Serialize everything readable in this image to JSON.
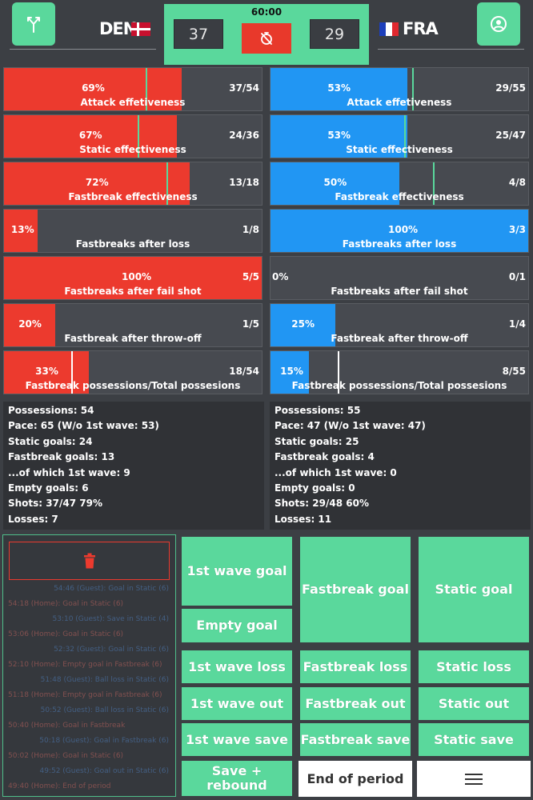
{
  "header": {
    "timer": "60:00",
    "left_team": {
      "name": "DEN",
      "score": "37"
    },
    "right_team": {
      "name": "FRA",
      "score": "29"
    }
  },
  "icons": {
    "top_left": "fork-icon",
    "top_right": "user-icon",
    "center": "stopwatch-off-icon",
    "delete": "trash-icon",
    "menu": "hamburger-menu-icon"
  },
  "colors": {
    "accent": "#5ad89c",
    "den_bar": "#ec3a2e",
    "fra_bar": "#2196f3",
    "background": "#3c3f44"
  },
  "den_stats": [
    {
      "label": "Attack effetiveness",
      "pct": "69%",
      "count": "37/54",
      "fill": 0.69,
      "avg": 0.55
    },
    {
      "label": "Static effectiveness",
      "pct": "67%",
      "count": "24/36",
      "fill": 0.67,
      "avg": 0.52
    },
    {
      "label": "Fastbreak effectiveness",
      "pct": "72%",
      "count": "13/18",
      "fill": 0.72,
      "avg": 0.63
    },
    {
      "label": "Fastbreaks after loss",
      "pct": "13%",
      "count": "1/8",
      "fill": 0.13
    },
    {
      "label": "Fastbreaks after fail shot",
      "pct": "100%",
      "count": "5/5",
      "fill": 1.0
    },
    {
      "label": "Fastbreak after throw-off",
      "pct": "20%",
      "count": "1/5",
      "fill": 0.2
    },
    {
      "label": "Fastbreak possessions/Total possesions",
      "pct": "33%",
      "count": "18/54",
      "fill": 0.33,
      "avg": 0.26,
      "avg_white": true
    }
  ],
  "fra_stats": [
    {
      "label": "Attack effetiveness",
      "pct": "53%",
      "count": "29/55",
      "fill": 0.53,
      "avg": 0.55
    },
    {
      "label": "Static effectiveness",
      "pct": "53%",
      "count": "25/47",
      "fill": 0.53,
      "avg": 0.52
    },
    {
      "label": "Fastbreak effectiveness",
      "pct": "50%",
      "count": "4/8",
      "fill": 0.5,
      "avg": 0.63
    },
    {
      "label": "Fastbreaks after loss",
      "pct": "100%",
      "count": "3/3",
      "fill": 1.0
    },
    {
      "label": "Fastbreaks after fail shot",
      "pct": "0%",
      "count": "0/1",
      "fill": 0.0
    },
    {
      "label": "Fastbreak after throw-off",
      "pct": "25%",
      "count": "1/4",
      "fill": 0.25
    },
    {
      "label": "Fastbreak possessions/Total possesions",
      "pct": "15%",
      "count": "8/55",
      "fill": 0.15,
      "avg": 0.26,
      "avg_white": true
    }
  ],
  "den_summary": [
    "Possessions: 54",
    "Pace: 65 (W/o 1st wave: 53)",
    "Static goals: 24",
    "Fastbreak goals: 13",
    "...of which 1st wave: 9",
    "Empty goals: 6",
    "Shots: 37/47 79%",
    "Losses: 7"
  ],
  "fra_summary": [
    "Possessions: 55",
    "Pace: 47 (W/o 1st wave: 47)",
    "Static goals: 25",
    "Fastbreak goals: 4",
    "...of which 1st wave: 0",
    "Empty goals: 0",
    "Shots: 29/48 60%",
    "Losses: 11"
  ],
  "log": [
    {
      "text": "54:46 (Guest): Goal in Static (6)",
      "team": "fra"
    },
    {
      "text": "54:18 (Home): Goal in Static (6)",
      "team": "den"
    },
    {
      "text": "53:10 (Guest): Save in Static (4)",
      "team": "fra"
    },
    {
      "text": "53:06 (Home): Goal in Static (6)",
      "team": "den"
    },
    {
      "text": "52:32 (Guest): Goal in Static (6)",
      "team": "fra"
    },
    {
      "text": "52:10 (Home): Empty goal in Fastbreak (6)",
      "team": "den"
    },
    {
      "text": "51:48 (Guest): Ball loss in Static (6)",
      "team": "fra"
    },
    {
      "text": "51:18 (Home): Empty goal in Fastbreak (6)",
      "team": "den"
    },
    {
      "text": "50:52 (Guest): Ball loss in Static (6)",
      "team": "fra"
    },
    {
      "text": "50:40 (Home): Goal in Fastbreak",
      "team": "den"
    },
    {
      "text": "50:18 (Guest): Goal in Fastbreak (6)",
      "team": "fra"
    },
    {
      "text": "50:02 (Home): Goal in Static (6)",
      "team": "den"
    },
    {
      "text": "49:52 (Guest): Goal out in Static (6)",
      "team": "fra"
    },
    {
      "text": "49:40 (Home): End of period",
      "team": "den"
    }
  ],
  "actions": {
    "first_wave_goal": "1st wave goal",
    "empty_goal": "Empty goal",
    "fastbreak_goal": "Fastbreak goal",
    "static_goal": "Static goal",
    "first_wave_loss": "1st wave loss",
    "fastbreak_loss": "Fastbreak loss",
    "static_loss": "Static loss",
    "first_wave_out": "1st wave out",
    "fastbreak_out": "Fastbreak out",
    "static_out": "Static out",
    "first_wave_save": "1st wave save",
    "fastbreak_save": "Fastbreak save",
    "static_save": "Static save",
    "save_rebound": "Save + rebound",
    "end_of_period": "End of period"
  }
}
